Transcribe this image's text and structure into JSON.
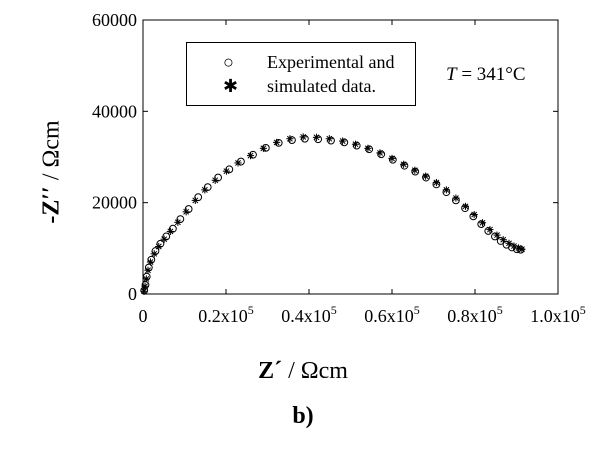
{
  "chart_data": {
    "type": "scatter",
    "title": "",
    "xlabel": {
      "main": "Z´",
      "sep": " / ",
      "unit": "Ωcm"
    },
    "ylabel": {
      "main": "-Z′′",
      "sep": " / ",
      "unit": "Ωcm"
    },
    "xlim": [
      0,
      100000
    ],
    "ylim": [
      0,
      60000
    ],
    "x_ticks": [
      {
        "value": 0,
        "base": "0",
        "exp": ""
      },
      {
        "value": 20000,
        "base": "0.2x10",
        "exp": "5"
      },
      {
        "value": 40000,
        "base": "0.4x10",
        "exp": "5"
      },
      {
        "value": 60000,
        "base": "0.6x10",
        "exp": "5"
      },
      {
        "value": 80000,
        "base": "0.8x10",
        "exp": "5"
      },
      {
        "value": 100000,
        "base": "1.0x10",
        "exp": "5"
      }
    ],
    "y_ticks": [
      {
        "value": 0,
        "label": "0"
      },
      {
        "value": 20000,
        "label": "20000"
      },
      {
        "value": 40000,
        "label": "40000"
      },
      {
        "value": 60000,
        "label": "60000"
      }
    ],
    "grid": false,
    "legend": {
      "placement": "top-left",
      "line1": "Experimental and",
      "line2": "simulated data.",
      "symbol_open_circle": "○",
      "symbol_star": "✱"
    },
    "annotation": {
      "var": "T",
      "text": " = 341°C"
    },
    "panel_label": "b)",
    "series": [
      {
        "marker": "circle",
        "points": [
          [
            300,
            800
          ],
          [
            600,
            2000
          ],
          [
            900,
            3800
          ],
          [
            1400,
            5800
          ],
          [
            2000,
            7500
          ],
          [
            3000,
            9400
          ],
          [
            4200,
            11000
          ],
          [
            5600,
            12600
          ],
          [
            7200,
            14300
          ],
          [
            9000,
            16400
          ],
          [
            11000,
            18600
          ],
          [
            13300,
            21200
          ],
          [
            15600,
            23400
          ],
          [
            18100,
            25500
          ],
          [
            20800,
            27300
          ],
          [
            23600,
            29000
          ],
          [
            26500,
            30500
          ],
          [
            29600,
            32000
          ],
          [
            32700,
            33100
          ],
          [
            35900,
            33700
          ],
          [
            39000,
            34000
          ],
          [
            42200,
            33900
          ],
          [
            45300,
            33600
          ],
          [
            48500,
            33200
          ],
          [
            51500,
            32500
          ],
          [
            54500,
            31700
          ],
          [
            57400,
            30600
          ],
          [
            60200,
            29400
          ],
          [
            63000,
            28100
          ],
          [
            65600,
            26800
          ],
          [
            68200,
            25500
          ],
          [
            70700,
            24000
          ],
          [
            73100,
            22300
          ],
          [
            75400,
            20500
          ],
          [
            77600,
            18800
          ],
          [
            79600,
            17000
          ],
          [
            81500,
            15300
          ],
          [
            83200,
            13800
          ],
          [
            84800,
            12600
          ],
          [
            86200,
            11600
          ],
          [
            87600,
            10800
          ],
          [
            88900,
            10200
          ],
          [
            90100,
            9800
          ],
          [
            91000,
            9700
          ]
        ]
      },
      {
        "marker": "star",
        "points": [
          [
            250,
            600
          ],
          [
            500,
            1700
          ],
          [
            800,
            3300
          ],
          [
            1200,
            5200
          ],
          [
            1800,
            7000
          ],
          [
            2700,
            8800
          ],
          [
            3800,
            10400
          ],
          [
            5100,
            12000
          ],
          [
            6600,
            13700
          ],
          [
            8400,
            15700
          ],
          [
            10400,
            18000
          ],
          [
            12600,
            20500
          ],
          [
            14900,
            22800
          ],
          [
            17400,
            24900
          ],
          [
            20100,
            26900
          ],
          [
            22900,
            28700
          ],
          [
            25900,
            30300
          ],
          [
            29000,
            31900
          ],
          [
            32200,
            33200
          ],
          [
            35400,
            34000
          ],
          [
            38600,
            34400
          ],
          [
            41800,
            34300
          ],
          [
            44900,
            34000
          ],
          [
            48100,
            33500
          ],
          [
            51200,
            32800
          ],
          [
            54200,
            31900
          ],
          [
            57100,
            30900
          ],
          [
            60000,
            29700
          ],
          [
            62800,
            28400
          ],
          [
            65500,
            27100
          ],
          [
            68100,
            25800
          ],
          [
            70700,
            24400
          ],
          [
            73100,
            22800
          ],
          [
            75400,
            21000
          ],
          [
            77700,
            19200
          ],
          [
            79800,
            17400
          ],
          [
            81800,
            15600
          ],
          [
            83600,
            14100
          ],
          [
            85300,
            12900
          ],
          [
            86800,
            11900
          ],
          [
            88200,
            11100
          ],
          [
            89400,
            10500
          ],
          [
            90500,
            10100
          ],
          [
            91300,
            9800
          ]
        ]
      }
    ]
  }
}
